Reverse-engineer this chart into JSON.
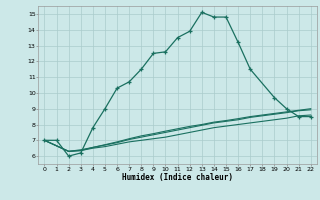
{
  "xlabel": "Humidex (Indice chaleur)",
  "bg_color": "#cce8e8",
  "grid_color": "#aacccc",
  "line_color": "#1a7060",
  "xlim": [
    -0.5,
    22.5
  ],
  "ylim": [
    5.5,
    15.5
  ],
  "xticks": [
    0,
    1,
    2,
    3,
    4,
    5,
    6,
    7,
    8,
    9,
    10,
    11,
    12,
    13,
    14,
    15,
    16,
    17,
    18,
    19,
    20,
    21,
    22
  ],
  "yticks": [
    6,
    7,
    8,
    9,
    10,
    11,
    12,
    13,
    14,
    15
  ],
  "series1_x": [
    0,
    1,
    2,
    3,
    4,
    5,
    6,
    7,
    8,
    9,
    10,
    11,
    12,
    13,
    14,
    15,
    16,
    17,
    19,
    20,
    21,
    22
  ],
  "series1_y": [
    7.0,
    7.0,
    6.0,
    6.2,
    7.8,
    9.0,
    10.3,
    10.7,
    11.5,
    12.5,
    12.6,
    13.5,
    13.9,
    15.1,
    14.8,
    14.8,
    13.2,
    11.5,
    9.7,
    9.0,
    8.5,
    8.5
  ],
  "series2_x": [
    0,
    2,
    3,
    4,
    5,
    6,
    7,
    8,
    9,
    10,
    11,
    12,
    13,
    14,
    15,
    16,
    17,
    18,
    19,
    20,
    21,
    22
  ],
  "series2_y": [
    7.0,
    6.3,
    6.35,
    6.5,
    6.6,
    6.75,
    6.9,
    7.0,
    7.1,
    7.2,
    7.35,
    7.5,
    7.65,
    7.8,
    7.9,
    8.0,
    8.1,
    8.2,
    8.3,
    8.4,
    8.55,
    8.6
  ],
  "series3_x": [
    0,
    2,
    3,
    4,
    5,
    6,
    7,
    8,
    9,
    10,
    11,
    12,
    13,
    14,
    15,
    16,
    17,
    18,
    19,
    20,
    21,
    22
  ],
  "series3_y": [
    7.0,
    6.3,
    6.35,
    6.55,
    6.7,
    6.85,
    7.05,
    7.2,
    7.35,
    7.5,
    7.65,
    7.8,
    7.95,
    8.1,
    8.2,
    8.3,
    8.45,
    8.55,
    8.65,
    8.75,
    8.87,
    8.93
  ],
  "series4_x": [
    0,
    2,
    3,
    4,
    5,
    6,
    7,
    8,
    9,
    10,
    11,
    12,
    13,
    14,
    15,
    16,
    17,
    18,
    19,
    20,
    21,
    22
  ],
  "series4_y": [
    7.0,
    6.3,
    6.4,
    6.55,
    6.72,
    6.9,
    7.1,
    7.28,
    7.42,
    7.58,
    7.73,
    7.88,
    8.0,
    8.15,
    8.25,
    8.37,
    8.5,
    8.6,
    8.7,
    8.8,
    8.9,
    9.0
  ]
}
